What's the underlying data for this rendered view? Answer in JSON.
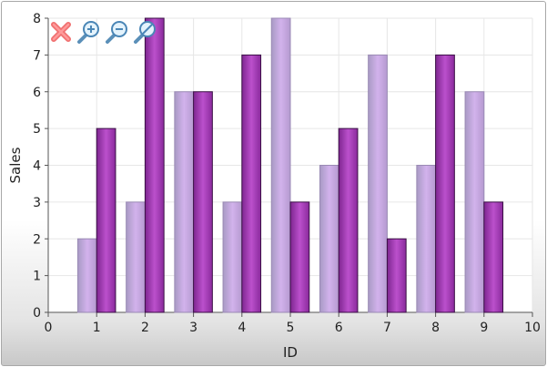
{
  "chart_data": {
    "type": "bar",
    "xlabel": "ID",
    "ylabel": "Sales",
    "xlim": [
      0,
      10
    ],
    "ylim": [
      0,
      8
    ],
    "x_ticks": [
      "0",
      "1",
      "2",
      "3",
      "4",
      "5",
      "6",
      "7",
      "8",
      "9",
      "10"
    ],
    "y_ticks": [
      "0",
      "1",
      "2",
      "3",
      "4",
      "5",
      "6",
      "7",
      "8"
    ],
    "categories": [
      1,
      2,
      3,
      4,
      5,
      6,
      7,
      8,
      9
    ],
    "series": [
      {
        "values": [
          2,
          3,
          6,
          3,
          8,
          4,
          7,
          4,
          6
        ],
        "color": "#c4a3dc"
      },
      {
        "values": [
          5,
          8,
          6,
          7,
          3,
          5,
          2,
          7,
          3
        ],
        "color": "#a53bb5"
      }
    ],
    "grid": true,
    "legend": false
  },
  "toolbar": {
    "icons": [
      "close-icon",
      "zoom-in-icon",
      "zoom-out-icon",
      "reset-zoom-icon"
    ]
  }
}
